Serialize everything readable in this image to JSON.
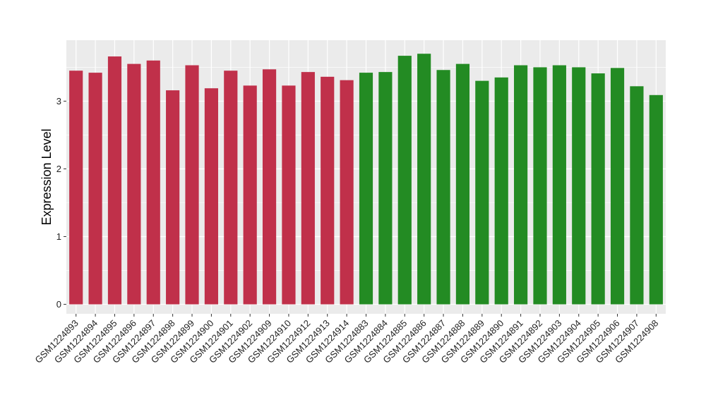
{
  "chart_data": {
    "type": "bar",
    "title": "",
    "xlabel": "",
    "ylabel": "Expression Level",
    "ylim": [
      -0.14,
      3.9
    ],
    "yticks": [
      0,
      1,
      2,
      3
    ],
    "grid": true,
    "categories": [
      "GSM1224893",
      "GSM1224894",
      "GSM1224895",
      "GSM1224896",
      "GSM1224897",
      "GSM1224898",
      "GSM1224899",
      "GSM1224900",
      "GSM1224901",
      "GSM1224902",
      "GSM1224909",
      "GSM1224910",
      "GSM1224912",
      "GSM1224913",
      "GSM1224914",
      "GSM1224883",
      "GSM1224884",
      "GSM1224885",
      "GSM1224886",
      "GSM1224887",
      "GSM1224888",
      "GSM1224889",
      "GSM1224890",
      "GSM1224891",
      "GSM1224892",
      "GSM1224903",
      "GSM1224904",
      "GSM1224905",
      "GSM1224906",
      "GSM1224907",
      "GSM1224908"
    ],
    "values": [
      3.45,
      3.42,
      3.66,
      3.55,
      3.6,
      3.16,
      3.53,
      3.19,
      3.45,
      3.23,
      3.47,
      3.23,
      3.43,
      3.36,
      3.31,
      3.42,
      3.43,
      3.67,
      3.7,
      3.46,
      3.55,
      3.3,
      3.35,
      3.53,
      3.5,
      3.53,
      3.5,
      3.41,
      3.49,
      3.22,
      3.09
    ],
    "bar_colors": [
      "#c0304a",
      "#c0304a",
      "#c0304a",
      "#c0304a",
      "#c0304a",
      "#c0304a",
      "#c0304a",
      "#c0304a",
      "#c0304a",
      "#c0304a",
      "#c0304a",
      "#c0304a",
      "#c0304a",
      "#c0304a",
      "#c0304a",
      "#238b23",
      "#238b23",
      "#238b23",
      "#238b23",
      "#238b23",
      "#238b23",
      "#238b23",
      "#238b23",
      "#238b23",
      "#238b23",
      "#238b23",
      "#238b23",
      "#238b23",
      "#238b23",
      "#238b23",
      "#238b23"
    ],
    "panel_background": "#ebebeb",
    "gridline_color": "#ffffff"
  }
}
